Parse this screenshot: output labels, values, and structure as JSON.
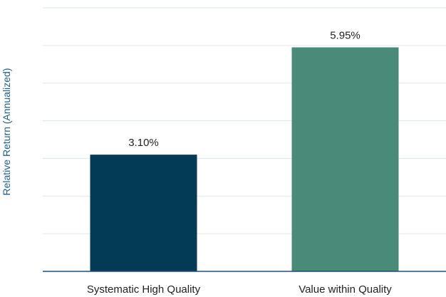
{
  "chart_data": {
    "type": "bar",
    "title": "",
    "xlabel": "",
    "ylabel": "Relative Return (Annualized)",
    "categories": [
      "Systematic High Quality",
      "Value within Quality"
    ],
    "values": [
      3.1,
      5.95
    ],
    "data_labels": [
      "3.10%",
      "5.95%"
    ],
    "ylim": [
      0,
      7
    ],
    "grid": true,
    "colors": [
      "#033a56",
      "#4a8a78"
    ],
    "gridline_color": "#dde6ee",
    "axis_color": "#1f4e79"
  }
}
